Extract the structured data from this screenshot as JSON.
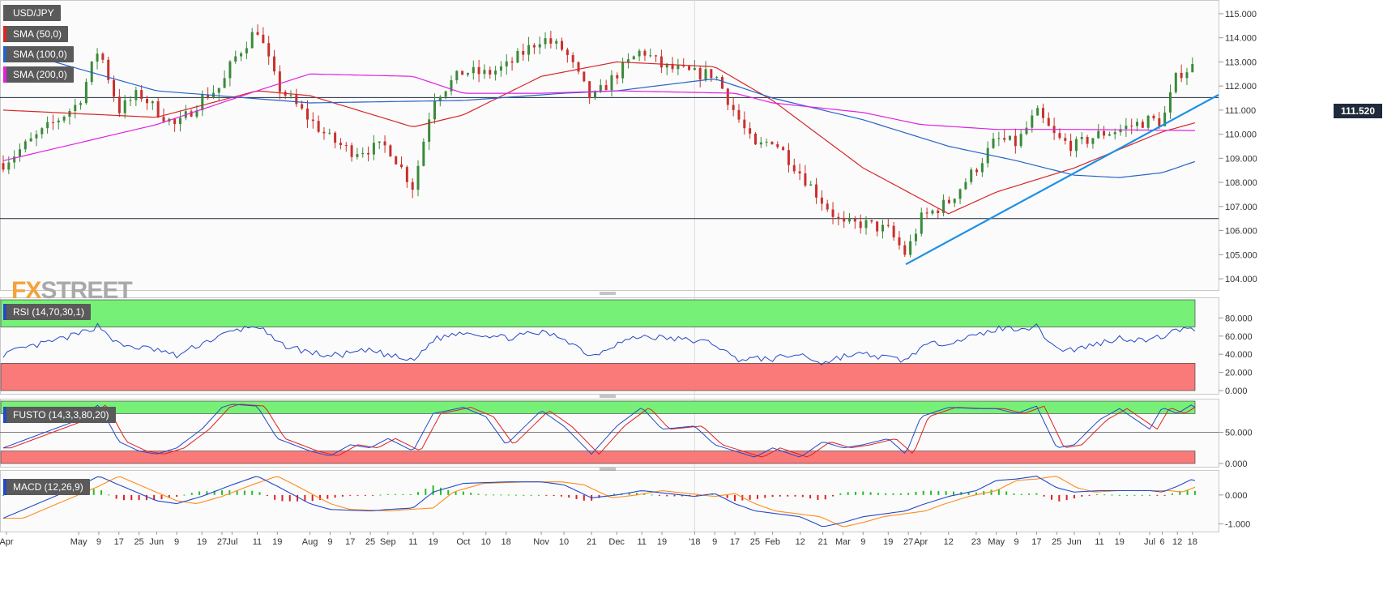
{
  "instrument": "USD/JPY",
  "last_price": "111.520",
  "watermark": {
    "prefix": "FX",
    "suffix": "STREET"
  },
  "indicators": {
    "sma50": {
      "label": "SMA (50,0)",
      "color": "#d62728"
    },
    "sma100": {
      "label": "SMA (100,0)",
      "color": "#2563c9"
    },
    "sma200": {
      "label": "SMA (200,0)",
      "color": "#e020e0"
    },
    "rsi": {
      "label": "RSI (14,70,30,1)",
      "color": "#2448c8"
    },
    "fusto": {
      "label": "FUSTO (14,3,3,80,20)"
    },
    "macd": {
      "label": "MACD (12,26,9)"
    }
  },
  "x_axis_labels": [
    "Apr",
    "May",
    "9",
    "17",
    "25",
    "Jun",
    "9",
    "19",
    "27",
    "Jul",
    "11",
    "19",
    "Aug",
    "9",
    "17",
    "25",
    "Sep",
    "11",
    "19",
    "Oct",
    "10",
    "18",
    "Nov",
    "10",
    "21",
    "Dec",
    "11",
    "19",
    "'18",
    "9",
    "17",
    "25",
    "Feb",
    "12",
    "21",
    "Mar",
    "9",
    "19",
    "27",
    "Apr",
    "12",
    "23",
    "May",
    "9",
    "17",
    "25",
    "Jun",
    "11",
    "19",
    "Jul",
    "6",
    "12",
    "18"
  ],
  "chart_data": [
    {
      "type": "candlestick",
      "title": "USD/JPY",
      "y_ticks": [
        "115.000",
        "114.000",
        "113.000",
        "112.000",
        "111.000",
        "110.000",
        "109.000",
        "108.000",
        "107.000",
        "106.000",
        "105.000",
        "104.000"
      ],
      "ylim": [
        103.8,
        115.3
      ],
      "horizontal_levels": [
        111.52,
        106.5
      ],
      "trendline": {
        "from": [
          "Mar 26 2018",
          104.6
        ],
        "to": [
          "Jul 20 2018",
          111.5
        ]
      },
      "close_anchors": [
        [
          "Apr 2017",
          108.8
        ],
        [
          "May 2017",
          111.3
        ],
        [
          "May 9",
          113.6
        ],
        [
          "May 17",
          111.0
        ],
        [
          "May 25",
          111.7
        ],
        [
          "Jun 2017",
          111.0
        ],
        [
          "Jun 9",
          110.3
        ],
        [
          "Jun 19",
          111.5
        ],
        [
          "Jun 27",
          112.0
        ],
        [
          "Jul 2017",
          113.0
        ],
        [
          "Jul 11",
          114.4
        ],
        [
          "Jul 19",
          112.0
        ],
        [
          "Aug 2017",
          110.6
        ],
        [
          "Aug 9",
          109.8
        ],
        [
          "Aug 17",
          109.3
        ],
        [
          "Aug 25",
          109.4
        ],
        [
          "Sep 2017",
          109.5
        ],
        [
          "Sep 11",
          107.8
        ],
        [
          "Sep 19",
          111.5
        ],
        [
          "Oct 2017",
          112.6
        ],
        [
          "Oct 10",
          112.5
        ],
        [
          "Oct 18",
          112.8
        ],
        [
          "Nov 2017",
          114.0
        ],
        [
          "Nov 10",
          113.5
        ],
        [
          "Nov 21",
          111.4
        ],
        [
          "Dec 2017",
          112.5
        ],
        [
          "Dec 11",
          113.5
        ],
        [
          "Dec 19",
          112.8
        ],
        [
          "Jan 2018",
          112.5
        ],
        [
          "Jan 9",
          112.5
        ],
        [
          "Jan 17",
          110.9
        ],
        [
          "Jan 25",
          109.4
        ],
        [
          "Feb 2018",
          109.8
        ],
        [
          "Feb 12",
          108.4
        ],
        [
          "Feb 21",
          107.2
        ],
        [
          "Mar 2018",
          106.2
        ],
        [
          "Mar 9",
          106.3
        ],
        [
          "Mar 19",
          106.0
        ],
        [
          "Mar 26",
          105.0
        ],
        [
          "Apr 2018",
          106.5
        ],
        [
          "Apr 12",
          107.2
        ],
        [
          "Apr 23",
          108.6
        ],
        [
          "May 2018",
          109.8
        ],
        [
          "May 9",
          109.6
        ],
        [
          "May 17",
          110.9
        ],
        [
          "May 25",
          109.8
        ],
        [
          "Jun 2018",
          109.5
        ],
        [
          "Jun 11",
          110.0
        ],
        [
          "Jun 19",
          110.2
        ],
        [
          "Jul 2018",
          110.6
        ],
        [
          "Jul 6",
          110.5
        ],
        [
          "Jul 12",
          112.5
        ],
        [
          "Jul 18",
          112.8
        ],
        [
          "Jul 20",
          111.52
        ]
      ],
      "series": [
        {
          "name": "SMA (50,0)",
          "anchors": [
            [
              "Apr 2017",
              111.0
            ],
            [
              "Jun 2017",
              110.7
            ],
            [
              "Jul 11",
              111.8
            ],
            [
              "Aug 2017",
              111.6
            ],
            [
              "Sep 11",
              110.3
            ],
            [
              "Oct 2017",
              110.8
            ],
            [
              "Nov 2017",
              112.4
            ],
            [
              "Dec 2017",
              113.0
            ],
            [
              "Jan 9",
              112.8
            ],
            [
              "Feb 2018",
              111.4
            ],
            [
              "Mar 9",
              108.6
            ],
            [
              "Apr 12",
              106.7
            ],
            [
              "May 2018",
              107.6
            ],
            [
              "Jun 2018",
              108.6
            ],
            [
              "Jul 6",
              110.1
            ],
            [
              "Jul 20",
              110.5
            ]
          ]
        },
        {
          "name": "SMA (100,0)",
          "anchors": [
            [
              "Apr 2017",
              113.6
            ],
            [
              "Jun 2017",
              111.8
            ],
            [
              "Aug 2017",
              111.3
            ],
            [
              "Oct 2017",
              111.4
            ],
            [
              "Nov 10",
              111.7
            ],
            [
              "Dec 2017",
              111.8
            ],
            [
              "Jan 9",
              112.3
            ],
            [
              "Feb 2018",
              111.5
            ],
            [
              "Mar 9",
              110.6
            ],
            [
              "Apr 12",
              109.5
            ],
            [
              "May 9",
              108.9
            ],
            [
              "Jun 2018",
              108.3
            ],
            [
              "Jun 19",
              108.2
            ],
            [
              "Jul 6",
              108.4
            ],
            [
              "Jul 20",
              108.9
            ]
          ]
        },
        {
          "name": "SMA (200,0)",
          "anchors": [
            [
              "Apr 2017",
              108.9
            ],
            [
              "Jun 2017",
              110.4
            ],
            [
              "Jul 11",
              111.8
            ],
            [
              "Aug 2017",
              112.5
            ],
            [
              "Sep 11",
              112.4
            ],
            [
              "Oct 2017",
              111.7
            ],
            [
              "Nov 2017",
              111.7
            ],
            [
              "Dec 2017",
              111.8
            ],
            [
              "Jan 17",
              111.7
            ],
            [
              "Feb 2018",
              111.3
            ],
            [
              "Mar 9",
              110.9
            ],
            [
              "Apr 2018",
              110.4
            ],
            [
              "May 2018",
              110.2
            ],
            [
              "Jun 2018",
              110.2
            ],
            [
              "Jul 20",
              110.15
            ]
          ]
        }
      ]
    },
    {
      "type": "line",
      "title": "RSI (14,70,30,1)",
      "y_ticks": [
        "80.000",
        "60.000",
        "40.000",
        "20.000",
        "0.000"
      ],
      "ylim": [
        0,
        100
      ],
      "bands": {
        "overbought": 70,
        "oversold": 30
      },
      "anchors": [
        [
          "Apr 2017",
          40
        ],
        [
          "May 2017",
          62
        ],
        [
          "May 9",
          72
        ],
        [
          "May 17",
          50
        ],
        [
          "Jun 2017",
          45
        ],
        [
          "Jun 9",
          38
        ],
        [
          "Jun 19",
          52
        ],
        [
          "Jul 2017",
          65
        ],
        [
          "Jul 11",
          72
        ],
        [
          "Jul 19",
          52
        ],
        [
          "Aug 2017",
          42
        ],
        [
          "Aug 9",
          38
        ],
        [
          "Aug 25",
          44
        ],
        [
          "Sep 11",
          32
        ],
        [
          "Sep 19",
          56
        ],
        [
          "Oct 2017",
          65
        ],
        [
          "Oct 18",
          58
        ],
        [
          "Nov 2017",
          64
        ],
        [
          "Nov 10",
          58
        ],
        [
          "Nov 21",
          38
        ],
        [
          "Dec 2017",
          52
        ],
        [
          "Dec 11",
          60
        ],
        [
          "Jan 2018",
          55
        ],
        [
          "Jan 9",
          52
        ],
        [
          "Jan 17",
          35
        ],
        [
          "Feb 2018",
          35
        ],
        [
          "Feb 12",
          40
        ],
        [
          "Feb 21",
          30
        ],
        [
          "Mar 2018",
          38
        ],
        [
          "Mar 9",
          40
        ],
        [
          "Mar 26",
          33
        ],
        [
          "Apr 2018",
          48
        ],
        [
          "Apr 23",
          60
        ],
        [
          "May 2018",
          68
        ],
        [
          "May 17",
          70
        ],
        [
          "May 25",
          46
        ],
        [
          "Jun 2018",
          45
        ],
        [
          "Jun 19",
          58
        ],
        [
          "Jul 2018",
          55
        ],
        [
          "Jul 12",
          66
        ],
        [
          "Jul 18",
          72
        ],
        [
          "Jul 20",
          54
        ]
      ]
    },
    {
      "type": "line",
      "title": "FUSTO (14,3,3,80,20)",
      "y_ticks": [
        "50.000",
        "0.000"
      ],
      "ylim": [
        0,
        100
      ],
      "bands": {
        "overbought": 80,
        "oversold": 20
      },
      "anchors": [
        [
          "Apr 2017",
          25
        ],
        [
          "May 2017",
          70
        ],
        [
          "May 9",
          95
        ],
        [
          "May 17",
          35
        ],
        [
          "May 25",
          20
        ],
        [
          "Jun 2017",
          15
        ],
        [
          "Jun 9",
          25
        ],
        [
          "Jun 19",
          55
        ],
        [
          "Jun 27",
          90
        ],
        [
          "Jul 2017",
          95
        ],
        [
          "Jul 11",
          92
        ],
        [
          "Jul 19",
          40
        ],
        [
          "Aug 2017",
          20
        ],
        [
          "Aug 9",
          12
        ],
        [
          "Aug 17",
          30
        ],
        [
          "Aug 25",
          25
        ],
        [
          "Sep 2017",
          40
        ],
        [
          "Sep 11",
          20
        ],
        [
          "Sep 19",
          80
        ],
        [
          "Oct 2017",
          90
        ],
        [
          "Oct 10",
          75
        ],
        [
          "Oct 18",
          30
        ],
        [
          "Nov 2017",
          85
        ],
        [
          "Nov 10",
          60
        ],
        [
          "Nov 21",
          15
        ],
        [
          "Dec 2017",
          60
        ],
        [
          "Dec 11",
          90
        ],
        [
          "Dec 19",
          55
        ],
        [
          "Jan 2018",
          60
        ],
        [
          "Jan 9",
          30
        ],
        [
          "Jan 17",
          20
        ],
        [
          "Jan 25",
          10
        ],
        [
          "Feb 2018",
          25
        ],
        [
          "Feb 12",
          10
        ],
        [
          "Feb 21",
          35
        ],
        [
          "Mar 2018",
          25
        ],
        [
          "Mar 9",
          30
        ],
        [
          "Mar 19",
          40
        ],
        [
          "Mar 26",
          15
        ],
        [
          "Apr 2018",
          75
        ],
        [
          "Apr 12",
          90
        ],
        [
          "Apr 23",
          88
        ],
        [
          "May 2018",
          88
        ],
        [
          "May 9",
          80
        ],
        [
          "May 17",
          92
        ],
        [
          "May 25",
          25
        ],
        [
          "Jun 2018",
          30
        ],
        [
          "Jun 11",
          70
        ],
        [
          "Jun 19",
          88
        ],
        [
          "Jul 2018",
          55
        ],
        [
          "Jul 6",
          90
        ],
        [
          "Jul 12",
          80
        ],
        [
          "Jul 18",
          95
        ],
        [
          "Jul 20",
          85
        ]
      ]
    },
    {
      "type": "bar+line",
      "title": "MACD (12,26,9)",
      "y_ticks": [
        "0.000",
        "-1.000"
      ],
      "ylim": [
        -1.15,
        0.75
      ],
      "anchors": [
        [
          "Apr 2017",
          -0.8
        ],
        [
          "May 2017",
          0.3
        ],
        [
          "May 9",
          0.65
        ],
        [
          "May 17",
          0.35
        ],
        [
          "Jun 2017",
          -0.2
        ],
        [
          "Jun 9",
          -0.3
        ],
        [
          "Jun 19",
          -0.05
        ],
        [
          "Jul 2017",
          0.35
        ],
        [
          "Jul 11",
          0.65
        ],
        [
          "Jul 19",
          0.3
        ],
        [
          "Aug 2017",
          -0.3
        ],
        [
          "Aug 9",
          -0.5
        ],
        [
          "Aug 25",
          -0.55
        ],
        [
          "Sep 2017",
          -0.5
        ],
        [
          "Sep 11",
          -0.45
        ],
        [
          "Sep 19",
          0.1
        ],
        [
          "Oct 2017",
          0.4
        ],
        [
          "Oct 18",
          0.45
        ],
        [
          "Nov 2017",
          0.45
        ],
        [
          "Nov 10",
          0.35
        ],
        [
          "Nov 21",
          -0.1
        ],
        [
          "Dec 2017",
          0.0
        ],
        [
          "Dec 11",
          0.15
        ],
        [
          "Jan 2018",
          -0.05
        ],
        [
          "Jan 9",
          0.05
        ],
        [
          "Jan 17",
          -0.3
        ],
        [
          "Jan 25",
          -0.55
        ],
        [
          "Feb 12",
          -0.75
        ],
        [
          "Feb 21",
          -1.1
        ],
        [
          "Mar 2018",
          -0.95
        ],
        [
          "Mar 9",
          -0.75
        ],
        [
          "Mar 26",
          -0.55
        ],
        [
          "Apr 2018",
          -0.35
        ],
        [
          "Apr 12",
          -0.05
        ],
        [
          "Apr 23",
          0.15
        ],
        [
          "May 2018",
          0.5
        ],
        [
          "May 9",
          0.55
        ],
        [
          "May 17",
          0.65
        ],
        [
          "May 25",
          0.25
        ],
        [
          "Jun 2018",
          0.1
        ],
        [
          "Jun 11",
          0.15
        ],
        [
          "Jun 19",
          0.15
        ],
        [
          "Jul 2018",
          0.15
        ],
        [
          "Jul 6",
          0.1
        ],
        [
          "Jul 12",
          0.3
        ],
        [
          "Jul 18",
          0.55
        ],
        [
          "Jul 20",
          0.45
        ]
      ]
    }
  ]
}
